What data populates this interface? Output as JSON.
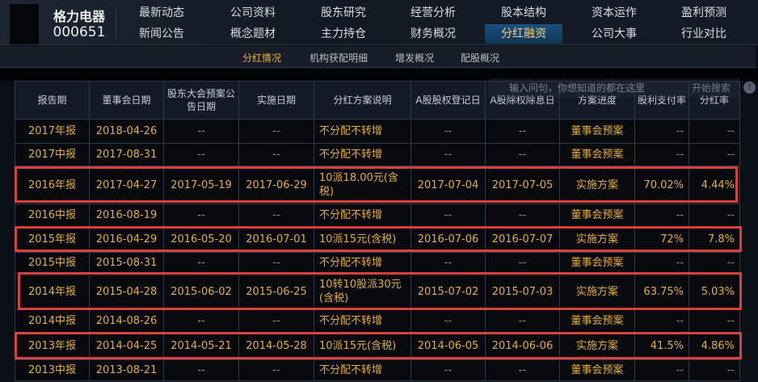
{
  "stock": {
    "name": "格力电器",
    "code": "000651"
  },
  "nav": [
    "最新动态",
    "公司资料",
    "股东研究",
    "经营分析",
    "股本结构",
    "资本运作",
    "盈利预测",
    "新闻公告",
    "概念题材",
    "主力持仓",
    "财务概况",
    "分红融资",
    "公司大事",
    "行业对比"
  ],
  "nav_active": "分红融资",
  "subnav": [
    "分红情况",
    "机构获配明细",
    "增发概况",
    "配股概况"
  ],
  "subnav_active": "分红情况",
  "search": {
    "placeholder": "输入问句，你想知道的都在这里",
    "button": "开始搜索",
    "help": "?"
  },
  "table": {
    "headers": [
      "报告期",
      "董事会日期",
      "股东大会预案公告日期",
      "实施日期",
      "分红方案说明",
      "A股股权登记日",
      "A股除权除息日",
      "方案进度",
      "股利支付率",
      "分红率"
    ],
    "rows": [
      [
        "2017年报",
        "2018-04-26",
        "--",
        "--",
        "不分配不转增",
        "--",
        "--",
        "董事会预案",
        "--",
        "--"
      ],
      [
        "2017中报",
        "2017-08-31",
        "--",
        "--",
        "不分配不转增",
        "--",
        "--",
        "董事会预案",
        "--",
        "--"
      ],
      [
        "2016年报",
        "2017-04-27",
        "2017-05-19",
        "2017-06-29",
        "10派18.00元(含税)",
        "2017-07-04",
        "2017-07-05",
        "实施方案",
        "70.02%",
        "4.44%"
      ],
      [
        "2016中报",
        "2016-08-19",
        "--",
        "--",
        "不分配不转增",
        "--",
        "--",
        "董事会预案",
        "--",
        "--"
      ],
      [
        "2015年报",
        "2016-04-29",
        "2016-05-20",
        "2016-07-01",
        "10派15元(含税)",
        "2016-07-06",
        "2016-07-07",
        "实施方案",
        "72%",
        "7.8%"
      ],
      [
        "2015中报",
        "2015-08-31",
        "--",
        "--",
        "不分配不转增",
        "--",
        "--",
        "董事会预案",
        "--",
        "--"
      ],
      [
        "2014年报",
        "2015-04-28",
        "2015-06-02",
        "2015-06-25",
        "10转10股派30元(含税)",
        "2015-07-02",
        "2015-07-03",
        "实施方案",
        "63.75%",
        "5.03%"
      ],
      [
        "2014中报",
        "2014-08-26",
        "--",
        "--",
        "不分配不转增",
        "--",
        "--",
        "董事会预案",
        "--",
        "--"
      ],
      [
        "2013年报",
        "2014-04-25",
        "2014-05-21",
        "2014-05-28",
        "10派15元(含税)",
        "2014-06-05",
        "2014-06-06",
        "实施方案",
        "41.5%",
        "4.86%"
      ],
      [
        "2013中报",
        "2013-08-21",
        "--",
        "--",
        "不分配不转增",
        "--",
        "--",
        "董事会预案",
        "--",
        "--"
      ]
    ]
  },
  "highlighted_rows": [
    "2016年报",
    "2015年报",
    "2014年报",
    "2013年报"
  ],
  "colors": {
    "highlight": "#d9413e",
    "value_text": "#e5ad3e",
    "active_tab": "#1c4f7d"
  }
}
